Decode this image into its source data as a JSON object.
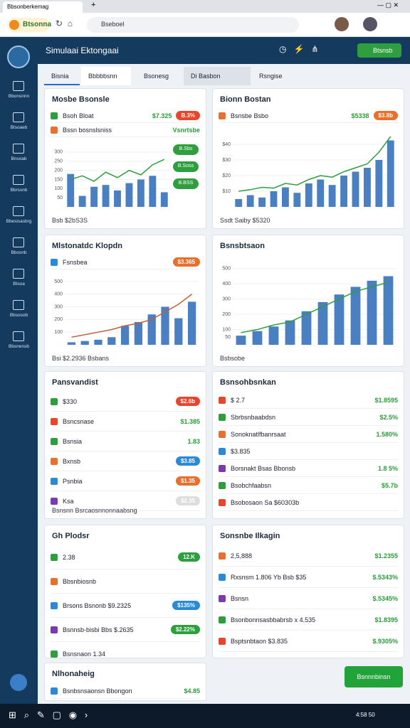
{
  "browser": {
    "tab": "Bbsonberkemag",
    "logo": "Btsonna",
    "url": "Bseboel"
  },
  "app": {
    "title": "Simulaai Ektongaai",
    "button": "Btsnsb"
  },
  "sidebar": [
    "Bbonsnnn",
    "Btsoaeb",
    "Bnsoab",
    "Bbrssnb",
    "Bbesisasbrg",
    "Bbosnb",
    "Btsoa",
    "Bbsosob",
    "Bbsnensb"
  ],
  "tabs": [
    "Bisnia",
    "Bbbbbsnn",
    "Bsonesg",
    "Di Basbon",
    "Rsngise"
  ],
  "cards": [
    {
      "title": "Mosbe Bsonsle",
      "rows": [
        {
          "label": "Bsoh Bloat",
          "value": "$7.325",
          "pill": {
            "text": "B.3%",
            "color": "#e8452c"
          }
        },
        {
          "label": "Bssn bosnslsniss",
          "value": "Vsnrtsbe"
        }
      ],
      "chart": {
        "ylim": [
          0,
          350
        ],
        "yticks": [
          50,
          100,
          150,
          200,
          250,
          300
        ],
        "values": [
          180,
          60,
          110,
          120,
          90,
          130,
          150,
          170,
          80
        ],
        "line": [
          150,
          170,
          140,
          190,
          160,
          200,
          175,
          230,
          260
        ],
        "color": "#4a7fc1",
        "line_color": "#2e9e3e",
        "tags": [
          "B.Sbs",
          "B.Soss",
          "B.BSS"
        ]
      },
      "footer": "Bsb $2bS3S"
    },
    {
      "title": "Bionn Bostan",
      "rows": [
        {
          "label": "Bsnsbe Bsbo",
          "value": "$5338",
          "pill": {
            "text": "$3.8b",
            "color": "#e8702c"
          }
        }
      ],
      "chart": {
        "ylim": [
          0,
          100
        ],
        "yticks": [
          {
            "value": 20,
            "label": "$10"
          },
          {
            "value": 40,
            "label": "$20"
          },
          {
            "value": 60,
            "label": "$30"
          },
          {
            "value": 80,
            "label": "$40"
          }
        ],
        "values": [
          10,
          15,
          12,
          20,
          25,
          18,
          30,
          35,
          28,
          40,
          45,
          50,
          60,
          85
        ],
        "line": [
          20,
          22,
          25,
          24,
          30,
          28,
          35,
          40,
          38,
          45,
          50,
          55,
          70,
          90
        ],
        "color": "#4a7fc1",
        "line_color": "#2e9e3e"
      },
      "footer": "Ssdt Saiby $5320"
    },
    {
      "title": "Mlstonatdc Klopdn",
      "rows": [
        {
          "label": "Fsnsbea",
          "pill": {
            "text": "$3.365",
            "color": "#e8702c"
          }
        }
      ],
      "chart": {
        "ylim": [
          0,
          550
        ],
        "yticks": [
          100,
          200,
          300,
          400,
          500
        ],
        "values": [
          20,
          30,
          40,
          60,
          150,
          180,
          240,
          300,
          210,
          340
        ],
        "line": [
          60,
          80,
          100,
          120,
          150,
          170,
          200,
          260,
          320,
          400
        ],
        "color": "#4a7fc1",
        "line_color": "#c0603a"
      },
      "footer": "Bsi $2.2936 Bsbans"
    },
    {
      "title": "Bsnsbtsaon",
      "rows": [],
      "chart": {
        "ylim": [
          0,
          550
        ],
        "yticks": [
          50,
          100,
          200,
          300,
          400,
          500
        ],
        "values": [
          60,
          90,
          120,
          160,
          220,
          280,
          330,
          380,
          420,
          450
        ],
        "line": [
          80,
          100,
          130,
          150,
          200,
          250,
          300,
          350,
          380,
          410
        ],
        "color": "#4a7fc1",
        "line_color": "#2e9e3e"
      },
      "footer": "Bsbsobe"
    },
    {
      "title": "Pansvandist",
      "rows": [
        {
          "label": "$330",
          "pill": {
            "text": "$2.6b",
            "color": "#e8452c"
          }
        },
        {
          "label": "Bsncsnase",
          "value": "$1.385"
        },
        {
          "label": "Bsnsia",
          "value": "1.83"
        },
        {
          "label": "Bxnsb",
          "pill": {
            "text": "$3.85",
            "color": "#2a8ad8"
          }
        },
        {
          "label": "Psnbia",
          "pill": {
            "text": "$1.35",
            "color": "#e8702c"
          }
        },
        {
          "label": "Ksa",
          "pill": {
            "text": "$2.35",
            "color": "#dddddd"
          }
        }
      ],
      "footer": "Bsnsnn Bsrcaosnnonnaabsng"
    },
    {
      "title": "Bsnsohbsnkan",
      "rows": [
        {
          "label": "$ 2.7",
          "value": "$1.8595"
        },
        {
          "label": "Sbrbsnbaabdsn",
          "value": "$2.5%"
        },
        {
          "label": "Sonoknatlfbanrsaat",
          "value": "1.580%"
        },
        {
          "label": "$3.835"
        },
        {
          "label": "Borsnakt Bsas Bbonsb",
          "value": "1.8 5%"
        },
        {
          "label": "Bsobchfaabsn",
          "value": "$5.7b"
        },
        {
          "label": "Bsobosaon Sa $60303b"
        }
      ]
    },
    {
      "title": "Gh Plodsr",
      "rows": [
        {
          "label": "2.38",
          "pill": {
            "text": "12.K",
            "color": "#2e9e3e"
          }
        },
        {
          "label": "Bbsnbiosnb"
        },
        {
          "label": "Brsons Bsnonb $9.2325",
          "pill": {
            "text": "$135%",
            "color": "#2a8ad8"
          }
        },
        {
          "label": "Bsnnsb-bisbi Bbs $.2635",
          "pill": {
            "text": "$2.22%",
            "color": "#2e9e3e"
          }
        },
        {
          "label": "Bsnsnaon 1.34"
        }
      ]
    },
    {
      "title": "Sonsnbe Ilkagin",
      "rows": [
        {
          "label": "2,5,888",
          "value": "$1.2355"
        },
        {
          "label": "Rxsnsm 1.806  Yb Bsb $35",
          "value": "$.5343%"
        },
        {
          "label": "Bsnsn",
          "value": "$.5345%"
        },
        {
          "label": "Bsonbonnsasbbabrsb x 4.535",
          "value": "$1.8395"
        },
        {
          "label": "Bsptsnbtaon $3.835",
          "value": "$.9305%"
        }
      ]
    },
    {
      "title": "Nlhonaheig",
      "rows": [
        {
          "label": "Bsnbsnsaonsn Bbongon",
          "value": "$4.85"
        }
      ]
    }
  ],
  "action": "Bsnnnbinsn",
  "clock": "4:58 50"
}
